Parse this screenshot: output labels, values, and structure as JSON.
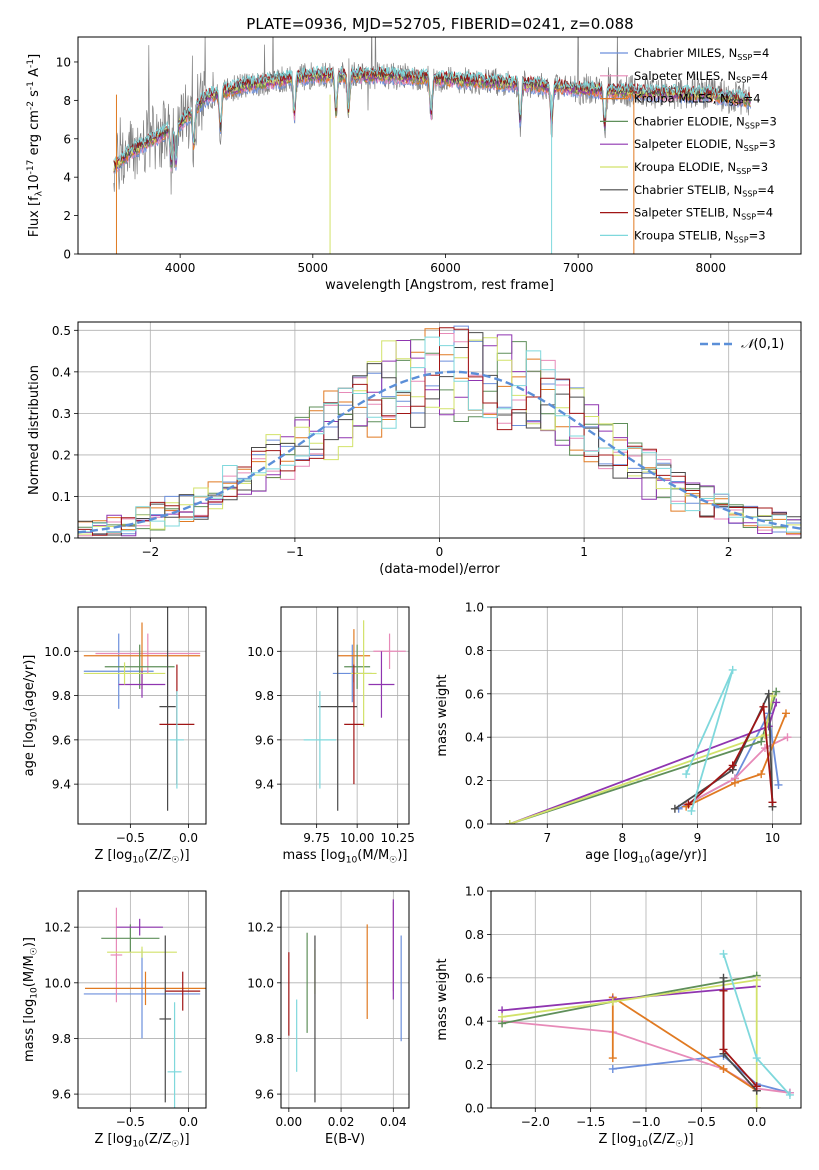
{
  "figure_title": "PLATE=0936, MJD=52705, FIBERID=0241, z=0.088",
  "models": [
    {
      "name": "Chabrier MILES, N$_{SSP}$=4",
      "color": "#6c8fdc"
    },
    {
      "name": "Salpeter MILES, N$_{SSP}$=4",
      "color": "#e78ab8"
    },
    {
      "name": "Kroupa MILES, N$_{SSP}$=4",
      "color": "#e07a22"
    },
    {
      "name": "Chabrier ELODIE, N$_{SSP}$=3",
      "color": "#5f8f5a"
    },
    {
      "name": "Salpeter ELODIE, N$_{SSP}$=3",
      "color": "#8f35b0"
    },
    {
      "name": "Kroupa ELODIE, N$_{SSP}$=3",
      "color": "#d2e26a"
    },
    {
      "name": "Chabrier STELIB, N$_{SSP}$=4",
      "color": "#4a4a4a"
    },
    {
      "name": "Salpeter STELIB, N$_{SSP}$=4",
      "color": "#a01515"
    },
    {
      "name": "Kroupa STELIB, N$_{SSP}$=3",
      "color": "#7fd8dc"
    }
  ],
  "chart_data": [
    {
      "id": "spectrum",
      "type": "line",
      "xlabel": "wavelength [Angstrom, rest frame]",
      "ylabel": "Flux [f$_\\lambda$10$^{-17}$ erg cm$^{-2}$ s$^{-1}$ A$^{-1}$]",
      "xlim": [
        3230,
        8680
      ],
      "ylim": [
        0,
        11.3
      ],
      "xticks": [
        4000,
        5000,
        6000,
        7000,
        8000
      ],
      "yticks": [
        0,
        2,
        4,
        6,
        8,
        10
      ],
      "data_color": "#808080",
      "continuum": {
        "x": [
          3500,
          3600,
          3800,
          4000,
          4200,
          4500,
          5000,
          5500,
          6000,
          6500,
          7000,
          7500,
          8000,
          8300
        ],
        "y": [
          4.5,
          5.2,
          6.0,
          6.8,
          8.2,
          8.8,
          9.3,
          9.3,
          9.1,
          8.9,
          8.6,
          8.4,
          8.3,
          8.0
        ]
      },
      "absorption_lines": [
        3934,
        3969,
        4102,
        4304,
        4861,
        5175,
        5270,
        5892,
        6563,
        6800,
        7200
      ],
      "spikes": [
        3520,
        5130,
        6800,
        7420
      ],
      "legend_position": "upper right"
    },
    {
      "id": "residuals",
      "type": "step",
      "xlabel": "(data-model)/error",
      "ylabel": "Normed distribution",
      "xlim": [
        -2.5,
        2.5
      ],
      "ylim": [
        0,
        0.52
      ],
      "xticks": [
        -2,
        -1,
        0,
        1,
        2
      ],
      "yticks": [
        0.0,
        0.1,
        0.2,
        0.3,
        0.4,
        0.5
      ],
      "bin_width": 0.1,
      "bin_start": -2.5,
      "reference": {
        "label": "$\\mathcal{N}(0,1)$",
        "color": "#5b8fd8",
        "mu": 0.1,
        "sigma": 1.0,
        "amp": 0.4
      },
      "legend_position": "upper right"
    },
    {
      "id": "age_vs_z",
      "type": "errorbar",
      "xlabel": "Z [log$_{10}$(Z/Z$_\\odot$)]",
      "ylabel": "age  [log$_{10}$(age/yr)]",
      "xlim": [
        -0.95,
        0.15
      ],
      "ylim": [
        9.22,
        10.2
      ],
      "xticks": [
        -0.5,
        0.0
      ],
      "yticks": [
        9.4,
        9.6,
        9.8,
        10.0
      ],
      "points": [
        {
          "m": 0,
          "x": -0.6,
          "y": 9.91,
          "xerr": 0.3,
          "yerr": 0.17
        },
        {
          "m": 1,
          "x": -0.35,
          "y": 9.99,
          "xerr": 0.45,
          "yerr": 0.09
        },
        {
          "m": 2,
          "x": -0.4,
          "y": 9.98,
          "xerr": 0.5,
          "yerr": 0.15
        },
        {
          "m": 3,
          "x": -0.42,
          "y": 9.93,
          "xerr": 0.3,
          "yerr": 0.1
        },
        {
          "m": 4,
          "x": -0.4,
          "y": 9.85,
          "xerr": 0.2,
          "yerr": 0.06
        },
        {
          "m": 5,
          "x": -0.55,
          "y": 9.9,
          "xerr": 0.35,
          "yerr": 0.05
        },
        {
          "m": 6,
          "x": -0.18,
          "y": 9.75,
          "xerr": 0.07,
          "yerr": 0.47
        },
        {
          "m": 7,
          "x": -0.1,
          "y": 9.67,
          "xerr": 0.15,
          "yerr": 0.27
        },
        {
          "m": 8,
          "x": -0.1,
          "y": 9.6,
          "xerr": 0.06,
          "yerr": 0.22
        }
      ]
    },
    {
      "id": "age_vs_mass",
      "type": "errorbar",
      "xlabel": "mass [log$_{10}$(M/M$_\\odot$)]",
      "ylabel": "",
      "xlim": [
        9.53,
        10.32
      ],
      "ylim": [
        9.22,
        10.2
      ],
      "xticks": [
        9.75,
        10.0,
        10.25
      ],
      "yticks": [
        9.4,
        9.6,
        9.8,
        10.0
      ],
      "points": [
        {
          "m": 0,
          "x": 9.97,
          "y": 9.9,
          "xerr": 0.12,
          "yerr": 0.13
        },
        {
          "m": 1,
          "x": 10.2,
          "y": 10.0,
          "xerr": 0.1,
          "yerr": 0.08
        },
        {
          "m": 2,
          "x": 9.98,
          "y": 9.98,
          "xerr": 0.1,
          "yerr": 0.12
        },
        {
          "m": 3,
          "x": 10.0,
          "y": 9.93,
          "xerr": 0.08,
          "yerr": 0.1
        },
        {
          "m": 4,
          "x": 10.15,
          "y": 9.85,
          "xerr": 0.08,
          "yerr": 0.15
        },
        {
          "m": 5,
          "x": 10.04,
          "y": 9.9,
          "xerr": 0.08,
          "yerr": 0.24
        },
        {
          "m": 6,
          "x": 9.88,
          "y": 9.75,
          "xerr": 0.12,
          "yerr": 0.47
        },
        {
          "m": 7,
          "x": 9.98,
          "y": 9.67,
          "xerr": 0.06,
          "yerr": 0.27
        },
        {
          "m": 8,
          "x": 9.77,
          "y": 9.6,
          "xerr": 0.1,
          "yerr": 0.22
        }
      ]
    },
    {
      "id": "mass_weight_vs_age",
      "type": "line",
      "xlabel": "age  [log$_{10}$(age/yr)]",
      "ylabel": "mass weight",
      "xlim": [
        6.25,
        10.38
      ],
      "ylim": [
        0,
        1.0
      ],
      "xticks": [
        7,
        8,
        9,
        10
      ],
      "yticks": [
        0.0,
        0.2,
        0.4,
        0.6,
        0.8,
        1.0
      ],
      "series": [
        {
          "m": 0,
          "x": [
            8.75,
            9.5,
            9.95,
            10.08
          ],
          "y": [
            0.07,
            0.21,
            0.51,
            0.18
          ]
        },
        {
          "m": 1,
          "x": [
            8.85,
            9.5,
            9.9,
            10.2
          ],
          "y": [
            0.09,
            0.21,
            0.35,
            0.4
          ]
        },
        {
          "m": 2,
          "x": [
            8.85,
            9.5,
            9.85,
            10.18
          ],
          "y": [
            0.08,
            0.19,
            0.23,
            0.51
          ]
        },
        {
          "m": 3,
          "x": [
            6.5,
            9.85,
            10.05
          ],
          "y": [
            0.0,
            0.38,
            0.61
          ]
        },
        {
          "m": 4,
          "x": [
            6.5,
            9.95,
            10.05
          ],
          "y": [
            0.0,
            0.45,
            0.56
          ]
        },
        {
          "m": 5,
          "x": [
            6.5,
            9.9,
            10.0
          ],
          "y": [
            0.0,
            0.41,
            0.59
          ]
        },
        {
          "m": 6,
          "x": [
            8.7,
            9.47,
            9.95,
            10.0
          ],
          "y": [
            0.07,
            0.25,
            0.6,
            0.08
          ]
        },
        {
          "m": 7,
          "x": [
            8.88,
            9.47,
            9.88,
            10.0
          ],
          "y": [
            0.09,
            0.27,
            0.54,
            0.1
          ]
        },
        {
          "m": 8,
          "x": [
            8.92,
            9.47,
            8.85
          ],
          "y": [
            0.06,
            0.71,
            0.23
          ]
        }
      ]
    },
    {
      "id": "mass_vs_z",
      "type": "errorbar",
      "xlabel": "Z [log$_{10}$(Z/Z$_\\odot$)]",
      "ylabel": "mass [log$_{10}$(M/M$_\\odot$)]",
      "xlim": [
        -0.95,
        0.15
      ],
      "ylim": [
        9.55,
        10.33
      ],
      "xticks": [
        -0.5,
        0.0
      ],
      "yticks": [
        9.6,
        9.8,
        10.0,
        10.2
      ],
      "points": [
        {
          "m": 0,
          "x": -0.4,
          "y": 9.96,
          "xerr": 0.5,
          "yerr": 0.16
        },
        {
          "m": 1,
          "x": -0.62,
          "y": 10.1,
          "xerr": 0.05,
          "yerr": 0.17
        },
        {
          "m": 2,
          "x": -0.37,
          "y": 9.98,
          "xerr": 0.52,
          "yerr": 0.06
        },
        {
          "m": 3,
          "x": -0.5,
          "y": 10.16,
          "xerr": 0.25,
          "yerr": 0.05
        },
        {
          "m": 4,
          "x": -0.42,
          "y": 10.2,
          "xerr": 0.2,
          "yerr": 0.03
        },
        {
          "m": 5,
          "x": -0.4,
          "y": 10.11,
          "xerr": 0.3,
          "yerr": 0.02
        },
        {
          "m": 6,
          "x": -0.2,
          "y": 9.87,
          "xerr": 0.05,
          "yerr": 0.3
        },
        {
          "m": 7,
          "x": -0.05,
          "y": 9.97,
          "xerr": 0.15,
          "yerr": 0.07
        },
        {
          "m": 8,
          "x": -0.12,
          "y": 9.68,
          "xerr": 0.06,
          "yerr": 0.25
        }
      ]
    },
    {
      "id": "mass_vs_ebv",
      "type": "errorbar",
      "xlabel": "E(B-V)",
      "ylabel": "",
      "xlim": [
        -0.003,
        0.046
      ],
      "ylim": [
        9.55,
        10.33
      ],
      "xticks": [
        0.0,
        0.02,
        0.04
      ],
      "yticks": [
        9.6,
        9.8,
        10.0,
        10.2
      ],
      "points": [
        {
          "m": 0,
          "x": 0.043,
          "y": 9.98,
          "xerr": 0,
          "yerr": 0.19
        },
        {
          "m": 1,
          "x": 0.04,
          "y": 10.13,
          "xerr": 0,
          "yerr": 0.16
        },
        {
          "m": 2,
          "x": 0.03,
          "y": 10.04,
          "xerr": 0,
          "yerr": 0.17
        },
        {
          "m": 3,
          "x": 0.007,
          "y": 10.0,
          "xerr": 0,
          "yerr": 0.18
        },
        {
          "m": 4,
          "x": 0.04,
          "y": 10.12,
          "xerr": 0,
          "yerr": 0.18
        },
        {
          "m": 5,
          "x": 0.01,
          "y": 10.04,
          "xerr": 0,
          "yerr": 0.08
        },
        {
          "m": 6,
          "x": 0.01,
          "y": 9.87,
          "xerr": 0,
          "yerr": 0.3
        },
        {
          "m": 7,
          "x": 0.0,
          "y": 9.96,
          "xerr": 0,
          "yerr": 0.15
        },
        {
          "m": 8,
          "x": 0.003,
          "y": 9.81,
          "xerr": 0,
          "yerr": 0.13
        }
      ]
    },
    {
      "id": "mass_weight_vs_z",
      "type": "line",
      "xlabel": "Z [log$_{10}$(Z/Z$_\\odot$)]",
      "ylabel": "mass weight",
      "xlim": [
        -2.4,
        0.4
      ],
      "ylim": [
        0,
        1.0
      ],
      "xticks": [
        -2.0,
        -1.5,
        -1.0,
        -0.5,
        0.0
      ],
      "yticks": [
        0.0,
        0.2,
        0.4,
        0.6,
        0.8,
        1.0
      ],
      "series": [
        {
          "m": 0,
          "x": [
            -1.3,
            -0.3,
            0.0,
            0.3
          ],
          "y": [
            0.18,
            0.24,
            0.11,
            0.07
          ]
        },
        {
          "m": 1,
          "x": [
            -2.3,
            -1.3,
            -0.3,
            0.0,
            0.3
          ],
          "y": [
            0.4,
            0.35,
            0.18,
            0.09,
            0.07
          ]
        },
        {
          "m": 2,
          "x": [
            -1.3,
            -1.3,
            -0.3,
            0.0
          ],
          "y": [
            0.23,
            0.51,
            0.18,
            0.08
          ]
        },
        {
          "m": 3,
          "x": [
            -2.3,
            -1.3,
            0.0
          ],
          "y": [
            0.39,
            0.49,
            0.61
          ]
        },
        {
          "m": 4,
          "x": [
            -2.3,
            -1.3,
            0.0
          ],
          "y": [
            0.45,
            0.5,
            0.56
          ]
        },
        {
          "m": 5,
          "x": [
            -2.3,
            -1.3,
            0.0,
            0.0
          ],
          "y": [
            0.42,
            0.49,
            0.59,
            0.0
          ]
        },
        {
          "m": 6,
          "x": [
            -0.3,
            -0.3,
            0.0,
            0.0
          ],
          "y": [
            0.6,
            0.25,
            0.08,
            0.08
          ]
        },
        {
          "m": 7,
          "x": [
            -0.3,
            -0.3,
            0.0,
            0.0
          ],
          "y": [
            0.54,
            0.27,
            0.1,
            0.1
          ]
        },
        {
          "m": 8,
          "x": [
            -0.3,
            0.0,
            0.3
          ],
          "y": [
            0.71,
            0.23,
            0.06
          ]
        }
      ]
    }
  ]
}
